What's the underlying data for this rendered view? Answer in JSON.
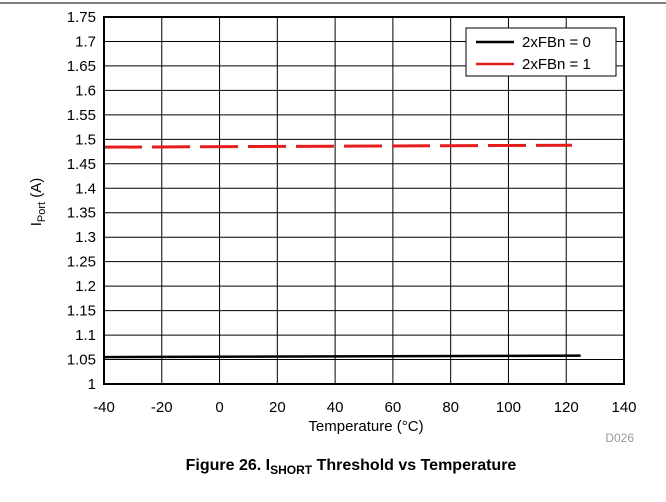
{
  "chart_data": {
    "type": "line",
    "caption": {
      "prefix": "Figure 26. I",
      "subscript": "SHORT",
      "suffix": " Threshold vs Temperature"
    },
    "xlabel": "Temperature (°C)",
    "ylabel": {
      "main": "I",
      "subscript": "Port",
      "suffix": " (A)"
    },
    "xlim": [
      -40,
      140
    ],
    "ylim": [
      1,
      1.75
    ],
    "x_ticks": [
      "-40",
      "-20",
      "0",
      "20",
      "40",
      "60",
      "80",
      "100",
      "120",
      "140"
    ],
    "y_ticks": [
      "1",
      "1.05",
      "1.1",
      "1.15",
      "1.2",
      "1.25",
      "1.3",
      "1.35",
      "1.4",
      "1.45",
      "1.5",
      "1.55",
      "1.6",
      "1.65",
      "1.7",
      "1.75"
    ],
    "x_tick_values": [
      -40,
      -20,
      0,
      20,
      40,
      60,
      80,
      100,
      120,
      140
    ],
    "y_tick_values": [
      1,
      1.05,
      1.1,
      1.15,
      1.2,
      1.25,
      1.3,
      1.35,
      1.4,
      1.45,
      1.5,
      1.55,
      1.6,
      1.65,
      1.7,
      1.75
    ],
    "grid": true,
    "legend_position": "top-right",
    "series": [
      {
        "name": "2xFBn = 0",
        "color": "#000000",
        "style": "solid",
        "x": [
          -40,
          125
        ],
        "values": [
          1.055,
          1.058
        ]
      },
      {
        "name": "2xFBn = 1",
        "color": "#e31c1c",
        "style": "dashed",
        "x": [
          -40,
          122
        ],
        "values": [
          1.484,
          1.488
        ]
      }
    ],
    "figure_code": "D026"
  }
}
